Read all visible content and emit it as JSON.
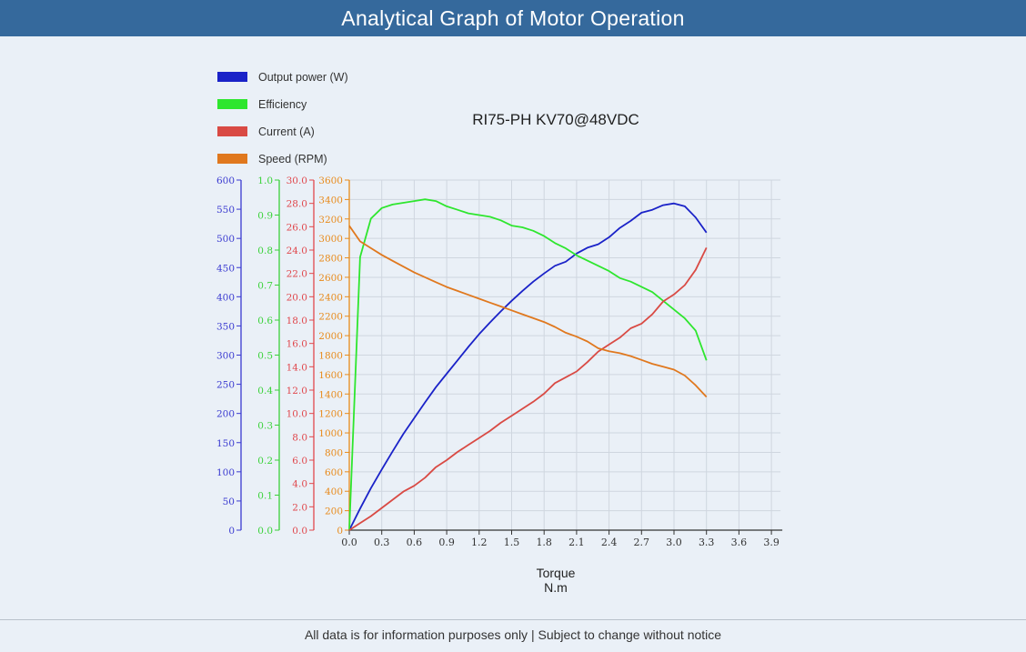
{
  "page": {
    "title": "Analytical Graph of Motor Operation",
    "footer": "All data is for information purposes only | Subject to change without notice"
  },
  "chart_data": {
    "type": "line",
    "title": "RI75-PH KV70@48VDC",
    "xlabel": "Torque",
    "xunit": "N.m",
    "xlim": [
      0,
      3.9
    ],
    "xticks": [
      "0.0",
      "0.3",
      "0.6",
      "0.9",
      "1.2",
      "1.5",
      "1.8",
      "2.1",
      "2.4",
      "2.7",
      "3.0",
      "3.3",
      "3.6",
      "3.9"
    ],
    "grid": true,
    "legend_position": "top-left",
    "axes": [
      {
        "id": "power",
        "color": "#3a3ad0",
        "min": 0,
        "max": 600,
        "ticks": [
          "0",
          "50",
          "100",
          "150",
          "200",
          "250",
          "300",
          "350",
          "400",
          "450",
          "500",
          "550",
          "600"
        ]
      },
      {
        "id": "eff",
        "color": "#3ad23a",
        "min": 0,
        "max": 1.0,
        "ticks": [
          "0.0",
          "0.1",
          "0.2",
          "0.3",
          "0.4",
          "0.5",
          "0.6",
          "0.7",
          "0.8",
          "0.9",
          "1.0"
        ]
      },
      {
        "id": "current",
        "color": "#e0474c",
        "min": 0,
        "max": 30,
        "ticks": [
          "0.0",
          "2.0",
          "4.0",
          "6.0",
          "8.0",
          "10.0",
          "12.0",
          "14.0",
          "16.0",
          "18.0",
          "20.0",
          "22.0",
          "24.0",
          "26.0",
          "28.0",
          "30.0"
        ]
      },
      {
        "id": "speed",
        "color": "#e88a1a",
        "min": 0,
        "max": 3600,
        "ticks": [
          "0",
          "200",
          "400",
          "600",
          "800",
          "1000",
          "1200",
          "1400",
          "1600",
          "1800",
          "2000",
          "2200",
          "2400",
          "2600",
          "2800",
          "3000",
          "3200",
          "3400",
          "3600"
        ]
      }
    ],
    "series": [
      {
        "name": "Output power (W)",
        "color": "#1a22c8",
        "axis": "power",
        "x": [
          0,
          0.1,
          0.2,
          0.3,
          0.4,
          0.5,
          0.6,
          0.7,
          0.8,
          0.9,
          1.0,
          1.1,
          1.2,
          1.3,
          1.4,
          1.5,
          1.6,
          1.7,
          1.8,
          1.9,
          2.0,
          2.1,
          2.2,
          2.3,
          2.4,
          2.5,
          2.6,
          2.7,
          2.8,
          2.9,
          3.0,
          3.1,
          3.2,
          3.3
        ],
        "y": [
          0,
          37,
          72,
          104,
          135,
          165,
          192,
          219,
          245,
          268,
          291,
          314,
          336,
          356,
          375,
          393,
          410,
          426,
          440,
          453,
          460,
          474,
          484,
          490,
          502,
          518,
          530,
          544,
          549,
          557,
          560,
          555,
          536,
          510
        ]
      },
      {
        "name": "Efficiency",
        "color": "#2ee62e",
        "axis": "eff",
        "x": [
          0,
          0.1,
          0.2,
          0.3,
          0.4,
          0.5,
          0.6,
          0.7,
          0.8,
          0.9,
          1.0,
          1.1,
          1.2,
          1.3,
          1.4,
          1.5,
          1.6,
          1.7,
          1.8,
          1.9,
          2.0,
          2.1,
          2.2,
          2.3,
          2.4,
          2.5,
          2.6,
          2.7,
          2.8,
          2.9,
          3.0,
          3.1,
          3.2,
          3.3
        ],
        "y": [
          0,
          0.78,
          0.89,
          0.92,
          0.93,
          0.935,
          0.94,
          0.945,
          0.94,
          0.925,
          0.915,
          0.905,
          0.9,
          0.895,
          0.885,
          0.87,
          0.865,
          0.855,
          0.84,
          0.82,
          0.805,
          0.785,
          0.77,
          0.755,
          0.74,
          0.72,
          0.71,
          0.695,
          0.68,
          0.655,
          0.63,
          0.605,
          0.57,
          0.485
        ]
      },
      {
        "name": "Current (A)",
        "color": "#d94a44",
        "axis": "current",
        "x": [
          0,
          0.1,
          0.2,
          0.3,
          0.4,
          0.5,
          0.6,
          0.7,
          0.8,
          0.9,
          1.0,
          1.1,
          1.2,
          1.3,
          1.4,
          1.5,
          1.6,
          1.7,
          1.8,
          1.9,
          2.0,
          2.1,
          2.2,
          2.3,
          2.4,
          2.5,
          2.6,
          2.7,
          2.8,
          2.9,
          3.0,
          3.1,
          3.2,
          3.3
        ],
        "y": [
          0,
          0.6,
          1.2,
          1.9,
          2.6,
          3.3,
          3.8,
          4.5,
          5.4,
          6.0,
          6.7,
          7.3,
          7.9,
          8.5,
          9.2,
          9.8,
          10.4,
          11.0,
          11.7,
          12.6,
          13.1,
          13.6,
          14.4,
          15.3,
          15.9,
          16.5,
          17.3,
          17.7,
          18.5,
          19.6,
          20.2,
          21.0,
          22.3,
          24.2
        ]
      },
      {
        "name": "Speed (RPM)",
        "color": "#e0781e",
        "axis": "speed",
        "x": [
          0,
          0.1,
          0.2,
          0.3,
          0.4,
          0.5,
          0.6,
          0.7,
          0.8,
          0.9,
          1.0,
          1.1,
          1.2,
          1.3,
          1.4,
          1.5,
          1.6,
          1.7,
          1.8,
          1.9,
          2.0,
          2.1,
          2.2,
          2.3,
          2.4,
          2.5,
          2.6,
          2.7,
          2.8,
          2.9,
          3.0,
          3.1,
          3.2,
          3.3
        ],
        "y": [
          3130,
          2970,
          2900,
          2830,
          2770,
          2710,
          2650,
          2600,
          2550,
          2500,
          2460,
          2420,
          2380,
          2340,
          2300,
          2260,
          2220,
          2180,
          2140,
          2090,
          2030,
          1990,
          1940,
          1870,
          1840,
          1820,
          1790,
          1750,
          1710,
          1680,
          1650,
          1590,
          1490,
          1370
        ]
      }
    ]
  }
}
